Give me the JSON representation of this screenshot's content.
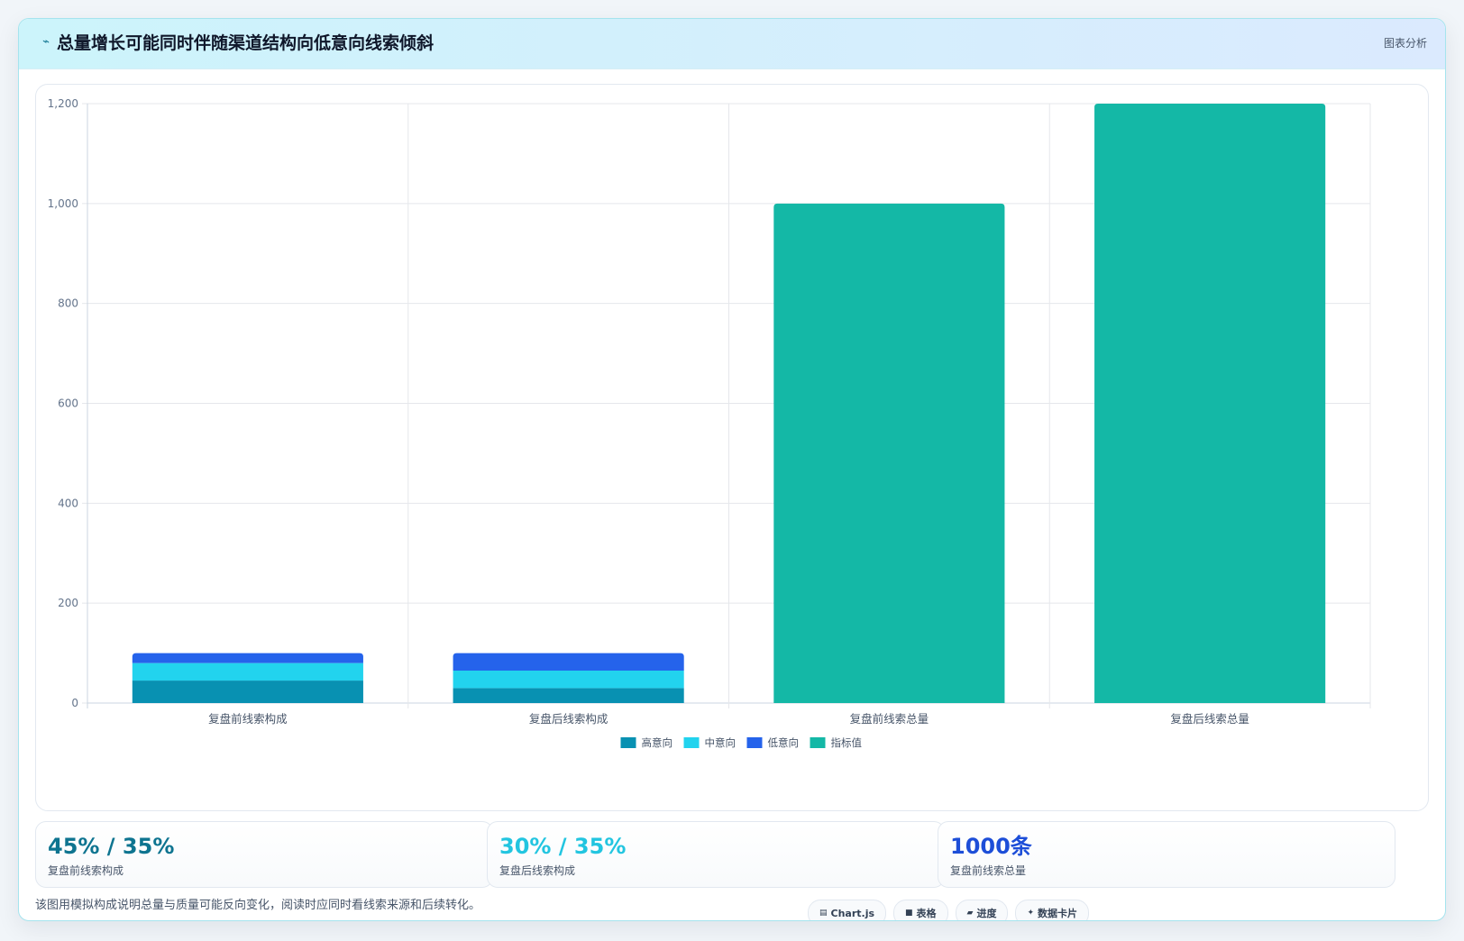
{
  "header": {
    "icon": "trend-line-icon",
    "title": "总量增长可能同时伴随渠道结构向低意向线索倾斜",
    "tag": "图表分析"
  },
  "chart_data": {
    "type": "bar",
    "stacked": true,
    "categories": [
      "复盘前线索构成",
      "复盘后线索构成",
      "复盘前线索总量",
      "复盘后线索总量"
    ],
    "series": [
      {
        "name": "高意向",
        "color": "#0891b2",
        "values": [
          45,
          30,
          0,
          0
        ]
      },
      {
        "name": "中意向",
        "color": "#22d3ee",
        "values": [
          35,
          35,
          0,
          0
        ]
      },
      {
        "name": "低意向",
        "color": "#2563eb",
        "values": [
          20,
          35,
          0,
          0
        ]
      },
      {
        "name": "指标值",
        "color": "#14b8a6",
        "values": [
          0,
          0,
          1000,
          1200
        ]
      }
    ],
    "ylim": [
      0,
      1200
    ],
    "yticks": [
      0,
      200,
      400,
      600,
      800,
      1000,
      1200
    ],
    "ytick_labels": [
      "0",
      "200",
      "400",
      "600",
      "800",
      "1,000",
      "1,200"
    ],
    "grid": true,
    "legend": "bottom-center"
  },
  "kpis": [
    {
      "value": "45% / 35%",
      "label": "复盘前线索构成",
      "color": "#0e7490"
    },
    {
      "value": "30% / 35%",
      "label": "复盘后线索构成",
      "color": "#22c5e0"
    },
    {
      "value": "1000条",
      "label": "复盘前线索总量",
      "color": "#1d4ed8"
    }
  ],
  "footnote": "该图用模拟构成说明总量与质量可能反向变化，阅读时应同时看线索来源和后续转化。",
  "chips": [
    {
      "icon": "chart-icon",
      "glyph": "▤",
      "label": "Chart.js"
    },
    {
      "icon": "table-icon",
      "glyph": "■",
      "label": "表格"
    },
    {
      "icon": "progress-icon",
      "glyph": "▰",
      "label": "进度"
    },
    {
      "icon": "sparkle-icon",
      "glyph": "✦",
      "label": "数据卡片"
    }
  ]
}
